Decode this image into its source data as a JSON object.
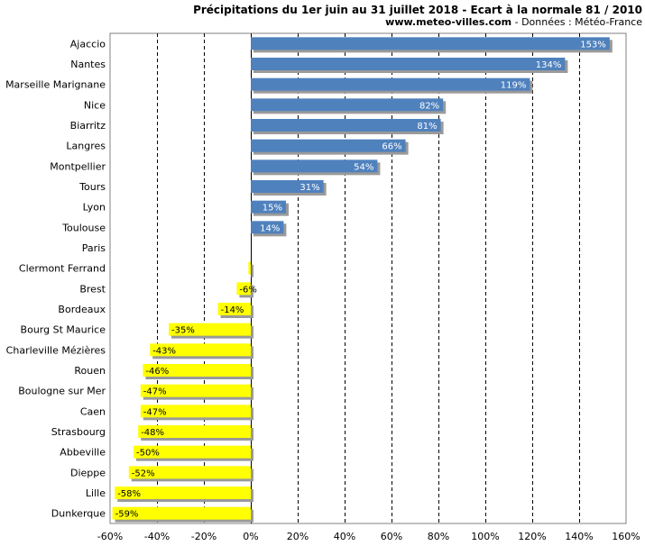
{
  "chart_data": {
    "type": "bar",
    "orientation": "horizontal",
    "title": "Précipitations du 1er juin au 31 juillet 2018 - Ecart à la normale 81 / 2010",
    "subtitle_site": "www.meteo-villes.com",
    "subtitle_rest": " - Données : Météo-France",
    "categories": [
      "Ajaccio",
      "Nantes",
      "Marseille Marignane",
      "Nice",
      "Biarritz",
      "Langres",
      "Montpellier",
      "Tours",
      "Lyon",
      "Toulouse",
      "Paris",
      "Clermont Ferrand",
      "Brest",
      "Bordeaux",
      "Bourg St Maurice",
      "Charleville Mézières",
      "Rouen",
      "Boulogne sur Mer",
      "Caen",
      "Strasbourg",
      "Abbeville",
      "Dieppe",
      "Lille",
      "Dunkerque"
    ],
    "values": [
      153,
      134,
      119,
      82,
      81,
      66,
      54,
      31,
      15,
      14,
      0,
      -1,
      -6,
      -14,
      -35,
      -43,
      -46,
      -47,
      -47,
      -48,
      -50,
      -52,
      -58,
      -59
    ],
    "labels": [
      "153%",
      "134%",
      "119%",
      "82%",
      "81%",
      "66%",
      "54%",
      "31%",
      "15%",
      "14%",
      "",
      "",
      "-6%",
      "-14%",
      "-35%",
      "-43%",
      "-46%",
      "-47%",
      "-47%",
      "-48%",
      "-50%",
      "-52%",
      "-58%",
      "-59%"
    ],
    "xlim": [
      -60,
      160
    ],
    "xticks": [
      -60,
      -40,
      -20,
      0,
      20,
      40,
      60,
      80,
      100,
      120,
      140,
      160
    ],
    "xtick_labels": [
      "-60%",
      "-40%",
      "-20%",
      "0%",
      "20%",
      "40%",
      "60%",
      "80%",
      "100%",
      "120%",
      "140%",
      "160%"
    ],
    "grid": true,
    "colors": {
      "positive": "#4f81bd",
      "negative": "#ffff00",
      "grid": "#000000",
      "shadow": "#9a9a9a"
    }
  }
}
